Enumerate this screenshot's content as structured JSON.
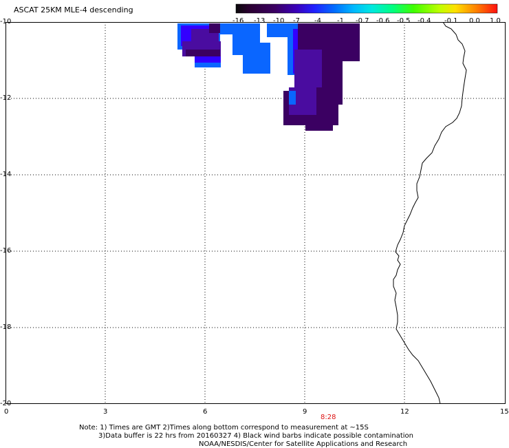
{
  "title": "ASCAT 25KM MLE-4 descending",
  "colorbar": {
    "labels": [
      "-16",
      "-13",
      "-10",
      "-7",
      "-4",
      "-1",
      "-0.7",
      "-0.6",
      "-0.5",
      "-0.4",
      "-0.1",
      "0.0",
      "1.0"
    ],
    "colors": [
      "#1a0a1a",
      "#2b0034",
      "#3a0082",
      "#3f00c8",
      "#1040ff",
      "#00a0ff",
      "#00f0ff",
      "#00ffa0",
      "#20ff00",
      "#b0ff00",
      "#ffe000",
      "#ff8000",
      "#ff2000"
    ]
  },
  "axes": {
    "y_ticks": [
      "-10",
      "-12",
      "-14",
      "-16",
      "-18",
      "-20"
    ],
    "x_ticks": [
      "0",
      "3",
      "6",
      "9",
      "12",
      "15"
    ]
  },
  "time_label": "8:28",
  "notes": {
    "line1": "Note: 1) Times are GMT 2)Times along bottom correspond to measurement at ~15S",
    "line2": "3)Data buffer is 22 hrs from 20160327 4) Black wind barbs indicate possible contamination",
    "line3": "NOAA/NESDIS/Center for Satellite Applications and Research"
  },
  "legend_colors": {
    "dark_purple": "#3b0062",
    "mid_purple": "#4a0ca0",
    "indigo": "#3300ff",
    "blue": "#0a66ff",
    "coast": "#000000"
  }
}
